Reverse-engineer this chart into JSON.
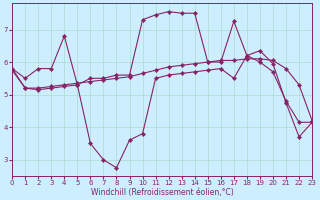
{
  "title": "",
  "xlabel": "Windchill (Refroidissement éolien,°C)",
  "bg_color": "#cceeff",
  "line_color": "#882266",
  "grid_color": "#aaddcc",
  "xlim": [
    0,
    23
  ],
  "ylim": [
    2.5,
    7.8
  ],
  "yticks": [
    3,
    4,
    5,
    6,
    7
  ],
  "xticks": [
    0,
    1,
    2,
    3,
    4,
    5,
    6,
    7,
    8,
    9,
    10,
    11,
    12,
    13,
    14,
    15,
    16,
    17,
    18,
    19,
    20,
    21,
    22,
    23
  ],
  "line1": {
    "x": [
      0,
      1,
      2,
      3,
      4,
      5,
      6,
      7,
      8,
      9,
      10,
      11,
      12,
      13,
      14,
      15,
      16,
      17,
      18,
      19,
      20,
      21,
      22,
      23
    ],
    "y": [
      5.8,
      5.5,
      5.8,
      5.8,
      6.8,
      5.3,
      5.5,
      5.5,
      5.6,
      5.6,
      7.3,
      7.45,
      7.55,
      7.5,
      7.5,
      6.0,
      6.0,
      7.25,
      6.2,
      6.35,
      5.95,
      4.75,
      3.7,
      4.15
    ]
  },
  "line2": {
    "x": [
      0,
      1,
      2,
      3,
      4,
      5,
      6,
      7,
      8,
      9,
      10,
      11,
      12,
      13,
      14,
      15,
      16,
      17,
      18,
      19,
      20,
      21,
      22,
      23
    ],
    "y": [
      5.8,
      5.2,
      5.2,
      5.25,
      5.3,
      5.35,
      5.4,
      5.45,
      5.5,
      5.55,
      5.65,
      5.75,
      5.85,
      5.9,
      5.95,
      6.0,
      6.05,
      6.05,
      6.1,
      6.1,
      6.05,
      5.8,
      5.3,
      4.2
    ]
  },
  "line3": {
    "x": [
      0,
      1,
      2,
      3,
      4,
      5,
      6,
      7,
      8,
      9,
      10,
      11,
      12,
      13,
      14,
      15,
      16,
      17,
      18,
      19,
      20,
      21,
      22,
      23
    ],
    "y": [
      5.75,
      5.2,
      5.15,
      5.2,
      5.25,
      5.3,
      3.5,
      3.0,
      2.75,
      3.6,
      3.8,
      5.5,
      5.6,
      5.65,
      5.7,
      5.75,
      5.8,
      5.5,
      6.2,
      6.0,
      5.7,
      4.8,
      4.15,
      4.15
    ]
  }
}
